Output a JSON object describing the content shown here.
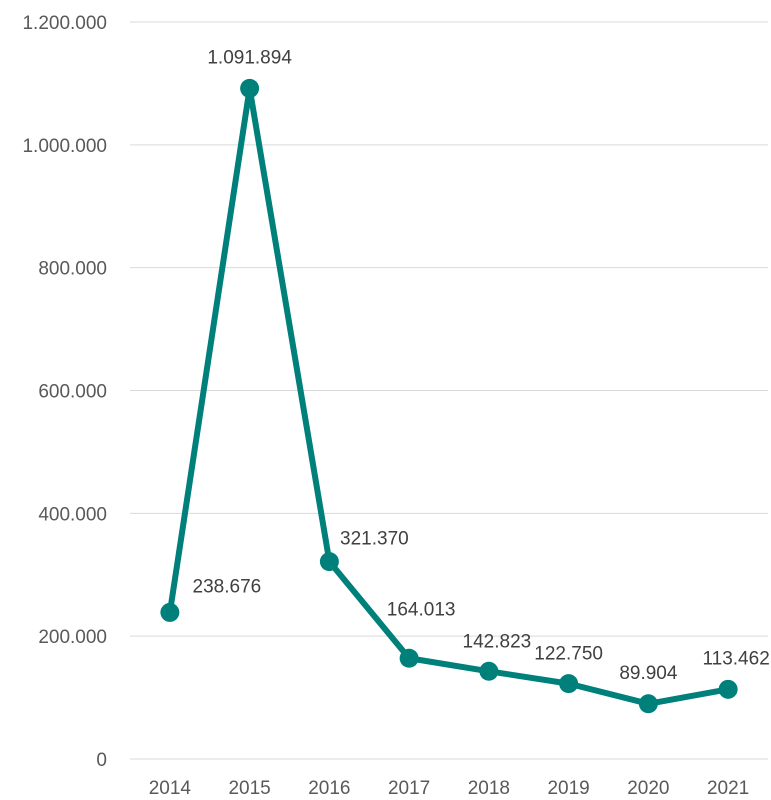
{
  "chart_data": {
    "type": "line",
    "title": "",
    "xlabel": "",
    "ylabel": "",
    "categories": [
      "2014",
      "2015",
      "2016",
      "2017",
      "2018",
      "2019",
      "2020",
      "2021"
    ],
    "series": [
      {
        "values": [
          238676,
          1091894,
          321370,
          164013,
          142823,
          122750,
          89904,
          113462
        ],
        "data_labels": [
          "238.676",
          "1.091.894",
          "321.370",
          "164.013",
          "142.823",
          "122.750",
          "89.904",
          "113.462"
        ]
      }
    ],
    "ylim": [
      0,
      1200000
    ],
    "yticks": [
      0,
      200000,
      400000,
      600000,
      800000,
      1000000,
      1200000
    ],
    "ytick_labels": [
      "0",
      "200.000",
      "400.000",
      "600.000",
      "800.000",
      "1.000.000",
      "1.200.000"
    ],
    "grid": true,
    "legend": "none",
    "colors": {
      "line": "#00807A",
      "grid": "#D9D9D9",
      "tick_text": "#595959",
      "label_text": "#404040"
    }
  }
}
